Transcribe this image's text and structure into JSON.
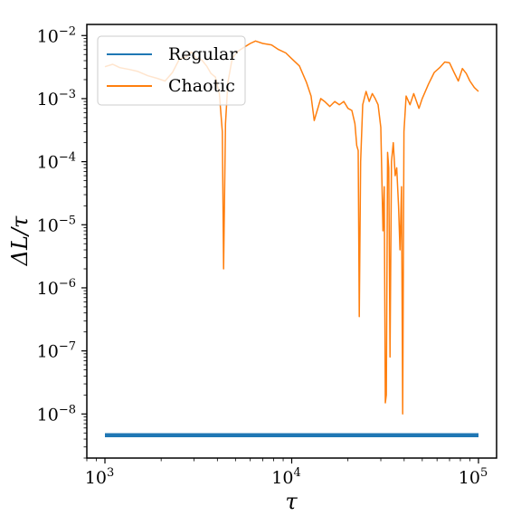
{
  "chart_data": {
    "type": "line",
    "xscale": "log",
    "yscale": "log",
    "xlim": [
      800,
      125000
    ],
    "ylim": [
      2e-09,
      0.015
    ],
    "xlabel": "τ",
    "ylabel": "ΔL/τ",
    "xticks": [
      {
        "value": 1000,
        "base": "10",
        "exp": "3"
      },
      {
        "value": 10000,
        "base": "10",
        "exp": "4"
      },
      {
        "value": 100000,
        "base": "10",
        "exp": "5"
      }
    ],
    "yticks": [
      {
        "value": 1e-08,
        "base": "10",
        "exp": "−8"
      },
      {
        "value": 1e-07,
        "base": "10",
        "exp": "−7"
      },
      {
        "value": 1e-06,
        "base": "10",
        "exp": "−6"
      },
      {
        "value": 1e-05,
        "base": "10",
        "exp": "−5"
      },
      {
        "value": 0.0001,
        "base": "10",
        "exp": "−4"
      },
      {
        "value": 0.001,
        "base": "10",
        "exp": "−3"
      },
      {
        "value": 0.01,
        "base": "10",
        "exp": "−2"
      }
    ],
    "legend": {
      "position": "top-left"
    },
    "series": [
      {
        "name": "Regular",
        "color": "#1f77b4",
        "points": [
          [
            1000,
            4.6e-09
          ],
          [
            100000,
            4.6e-09
          ]
        ]
      },
      {
        "name": "Chaotic",
        "color": "#ff7f0e",
        "points": [
          [
            1000,
            0.0032
          ],
          [
            1100,
            0.0035
          ],
          [
            1200,
            0.0031
          ],
          [
            1350,
            0.0029
          ],
          [
            1500,
            0.0027
          ],
          [
            1700,
            0.0023
          ],
          [
            1900,
            0.0021
          ],
          [
            2100,
            0.0019
          ],
          [
            2300,
            0.0026
          ],
          [
            2500,
            0.0042
          ],
          [
            2700,
            0.0045
          ],
          [
            2900,
            0.0055
          ],
          [
            3100,
            0.0043
          ],
          [
            3300,
            0.0041
          ],
          [
            3500,
            0.0033
          ],
          [
            3700,
            0.0025
          ],
          [
            3900,
            0.0022
          ],
          [
            4100,
            0.0012
          ],
          [
            4250,
            0.0003
          ],
          [
            4320,
            2e-06
          ],
          [
            4420,
            0.0004
          ],
          [
            4550,
            0.0018
          ],
          [
            4800,
            0.0043
          ],
          [
            5100,
            0.0055
          ],
          [
            5500,
            0.0064
          ],
          [
            6000,
            0.0075
          ],
          [
            6400,
            0.0082
          ],
          [
            7000,
            0.0075
          ],
          [
            7800,
            0.0071
          ],
          [
            8500,
            0.006
          ],
          [
            9300,
            0.0053
          ],
          [
            10000,
            0.0043
          ],
          [
            11000,
            0.0033
          ],
          [
            12000,
            0.0018
          ],
          [
            12700,
            0.0011
          ],
          [
            13200,
            0.00045
          ],
          [
            13700,
            0.00065
          ],
          [
            14300,
            0.001
          ],
          [
            15000,
            0.0009
          ],
          [
            16000,
            0.00075
          ],
          [
            17000,
            0.0009
          ],
          [
            18000,
            0.0008
          ],
          [
            19000,
            0.0009
          ],
          [
            20000,
            0.0007
          ],
          [
            21000,
            0.00065
          ],
          [
            21800,
            0.0004
          ],
          [
            22300,
            0.00018
          ],
          [
            22700,
            0.00015
          ],
          [
            23000,
            3.5e-07
          ],
          [
            23400,
            0.0001
          ],
          [
            24000,
            0.0008
          ],
          [
            25000,
            0.0013
          ],
          [
            26000,
            0.0009
          ],
          [
            27000,
            0.0012
          ],
          [
            28000,
            0.001
          ],
          [
            29000,
            0.0008
          ],
          [
            30000,
            0.00035
          ],
          [
            30800,
            8e-06
          ],
          [
            31300,
            4e-05
          ],
          [
            31700,
            1.5e-08
          ],
          [
            32100,
            2e-08
          ],
          [
            32600,
            0.00014
          ],
          [
            33100,
            8e-05
          ],
          [
            33600,
            8e-08
          ],
          [
            34200,
            0.0001
          ],
          [
            35000,
            0.0002
          ],
          [
            35800,
            6e-05
          ],
          [
            36500,
            8e-05
          ],
          [
            37300,
            2e-05
          ],
          [
            38000,
            4e-06
          ],
          [
            38700,
            4e-05
          ],
          [
            39300,
            1e-08
          ],
          [
            39900,
            0.0003
          ],
          [
            41000,
            0.0011
          ],
          [
            43000,
            0.0008
          ],
          [
            45000,
            0.0012
          ],
          [
            48000,
            0.0007
          ],
          [
            50000,
            0.001
          ],
          [
            54000,
            0.0017
          ],
          [
            58000,
            0.0026
          ],
          [
            62000,
            0.0031
          ],
          [
            66000,
            0.0038
          ],
          [
            70000,
            0.0037
          ],
          [
            74000,
            0.0026
          ],
          [
            78000,
            0.0019
          ],
          [
            82000,
            0.003
          ],
          [
            86000,
            0.0025
          ],
          [
            90000,
            0.0019
          ],
          [
            95000,
            0.0015
          ],
          [
            100000,
            0.0013
          ]
        ]
      }
    ]
  }
}
